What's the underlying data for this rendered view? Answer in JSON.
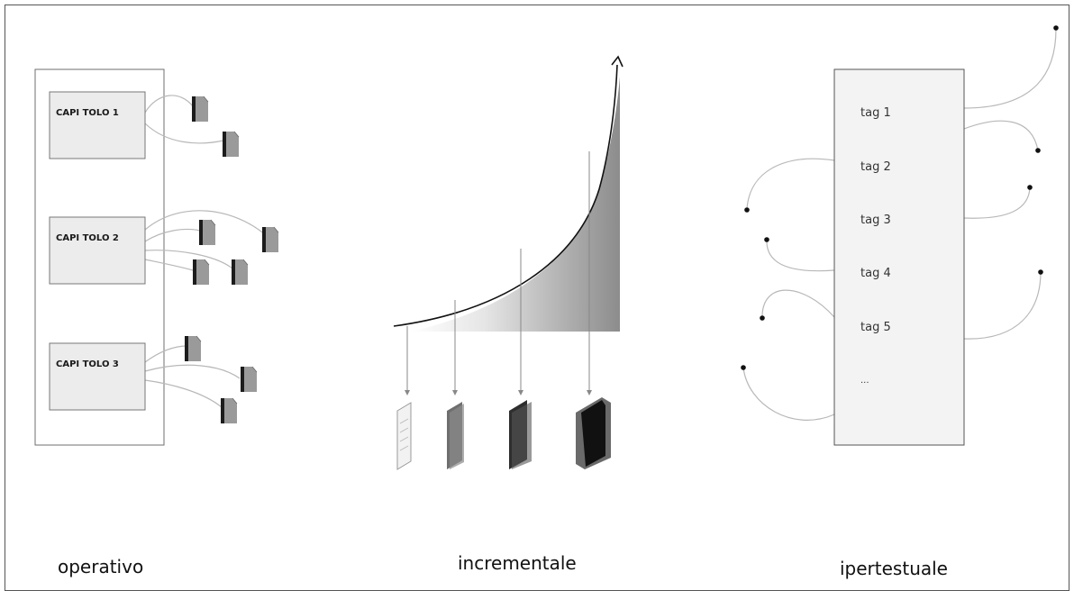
{
  "operativo": {
    "chapters": [
      "CAPI TOLO 1",
      "CAPI TOLO 2",
      "CAPI TOLO 3"
    ],
    "caption": "operativo"
  },
  "incrementale": {
    "caption": "incrementale"
  },
  "ipertestuale": {
    "tags": [
      "tag 1",
      "tag 2",
      "tag 3",
      "tag 4",
      "tag 5",
      "..."
    ],
    "caption": "ipertestuale"
  }
}
